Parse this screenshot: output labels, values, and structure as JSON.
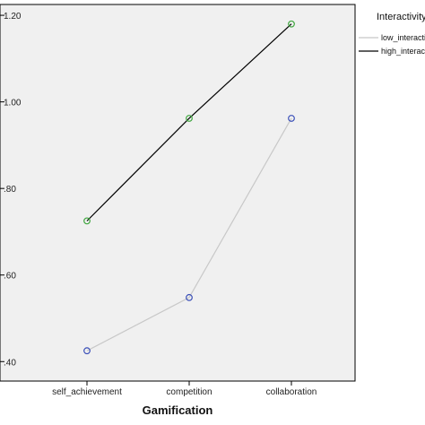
{
  "chart_data": {
    "type": "line",
    "title": "",
    "xlabel": "Gamification",
    "ylabel": "",
    "categories": [
      "self_achievement",
      "competition",
      "collaboration"
    ],
    "y_tick_labels": [
      ".40",
      ".60",
      ".80",
      "1.00",
      "1.20"
    ],
    "y_ticks": [
      0.4,
      0.6,
      0.8,
      1.0,
      1.2
    ],
    "ylim": [
      0.355,
      1.225
    ],
    "grid": false,
    "legend": {
      "title": "Interactivity",
      "placement": "right",
      "entries": [
        "low_interactivity",
        "high_interactivity"
      ]
    },
    "series": [
      {
        "name": "low_interactivity",
        "values": [
          0.425,
          0.548,
          0.962
        ],
        "line_color": "#c8c8c8",
        "marker_color": "#3a4fb8"
      },
      {
        "name": "high_interactivity",
        "values": [
          0.725,
          0.962,
          1.18
        ],
        "line_color": "#000000",
        "marker_color": "#3fa63f"
      }
    ],
    "plot_background": "#f0f0f0"
  }
}
